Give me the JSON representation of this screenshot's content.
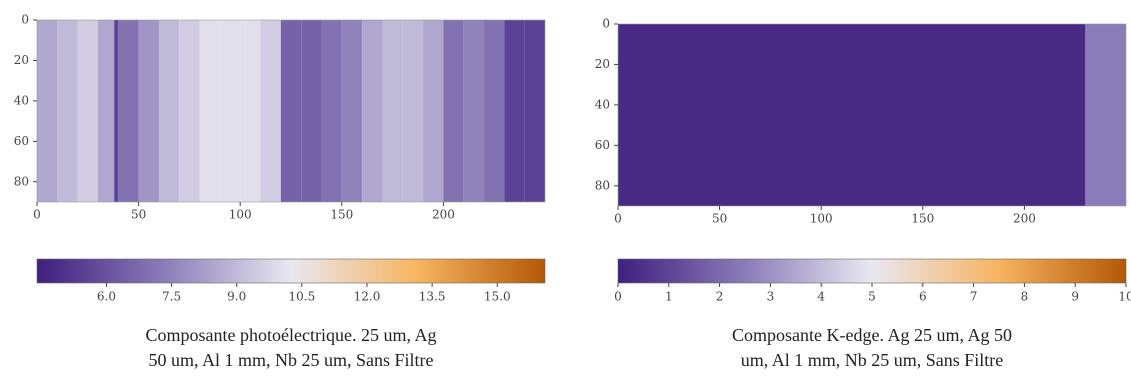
{
  "chart_data": [
    {
      "type": "heatmap",
      "xbins": [
        0,
        10,
        20,
        30,
        38,
        40,
        50,
        60,
        70,
        80,
        90,
        100,
        110,
        120,
        130,
        140,
        150,
        160,
        170,
        180,
        190,
        200,
        210,
        220,
        230,
        240,
        250
      ],
      "values": [
        8.5,
        9,
        9.5,
        8.5,
        5.5,
        7,
        8,
        9,
        9.5,
        10,
        10,
        10,
        9.5,
        6.5,
        6.5,
        7,
        7.5,
        8.5,
        9,
        9,
        8.5,
        7,
        7.5,
        7,
        5.5,
        5.5
      ],
      "xlim": [
        0,
        250
      ],
      "ylim": [
        0,
        90
      ],
      "y_inverted": true,
      "xticks": [
        0,
        50,
        100,
        150,
        200
      ],
      "yticks": [
        0,
        20,
        40,
        60,
        80
      ],
      "colormap": [
        "#3f1f7e",
        "#8a7cb8",
        "#e9e8f1",
        "#f7b460",
        "#b35806"
      ],
      "colorbar": {
        "lim": [
          4.4,
          16.1
        ],
        "ticks": [
          {
            "value": 6,
            "label": "6.0"
          },
          {
            "value": 7.5,
            "label": "7.5"
          },
          {
            "value": 9,
            "label": "9.0"
          },
          {
            "value": 10.5,
            "label": "10.5"
          },
          {
            "value": 12,
            "label": "12.0"
          },
          {
            "value": 13.5,
            "label": "13.5"
          },
          {
            "value": 15,
            "label": "15.0"
          }
        ]
      },
      "caption": [
        "Composante photoélectrique. 25 um, Ag",
        "50 um, Al 1 mm, Nb 25 um, Sans Filtre"
      ]
    },
    {
      "type": "heatmap",
      "xbins": [
        0,
        230,
        250
      ],
      "values": [
        0.3,
        2.5
      ],
      "xlim": [
        0,
        250
      ],
      "ylim": [
        0,
        90
      ],
      "y_inverted": true,
      "xticks": [
        0,
        50,
        100,
        150,
        200
      ],
      "yticks": [
        0,
        20,
        40,
        60,
        80
      ],
      "colormap": [
        "#3f1f7e",
        "#8a7cb8",
        "#e9e8f1",
        "#f7b460",
        "#b35806"
      ],
      "colorbar": {
        "lim": [
          0,
          10
        ],
        "ticks": [
          0,
          1,
          2,
          3,
          4,
          5,
          6,
          7,
          8,
          9,
          10
        ]
      },
      "caption": [
        "Composante K-edge. Ag 25 um, Ag 50",
        "um, Al 1 mm, Nb 25 um, Sans Filtre"
      ]
    }
  ]
}
